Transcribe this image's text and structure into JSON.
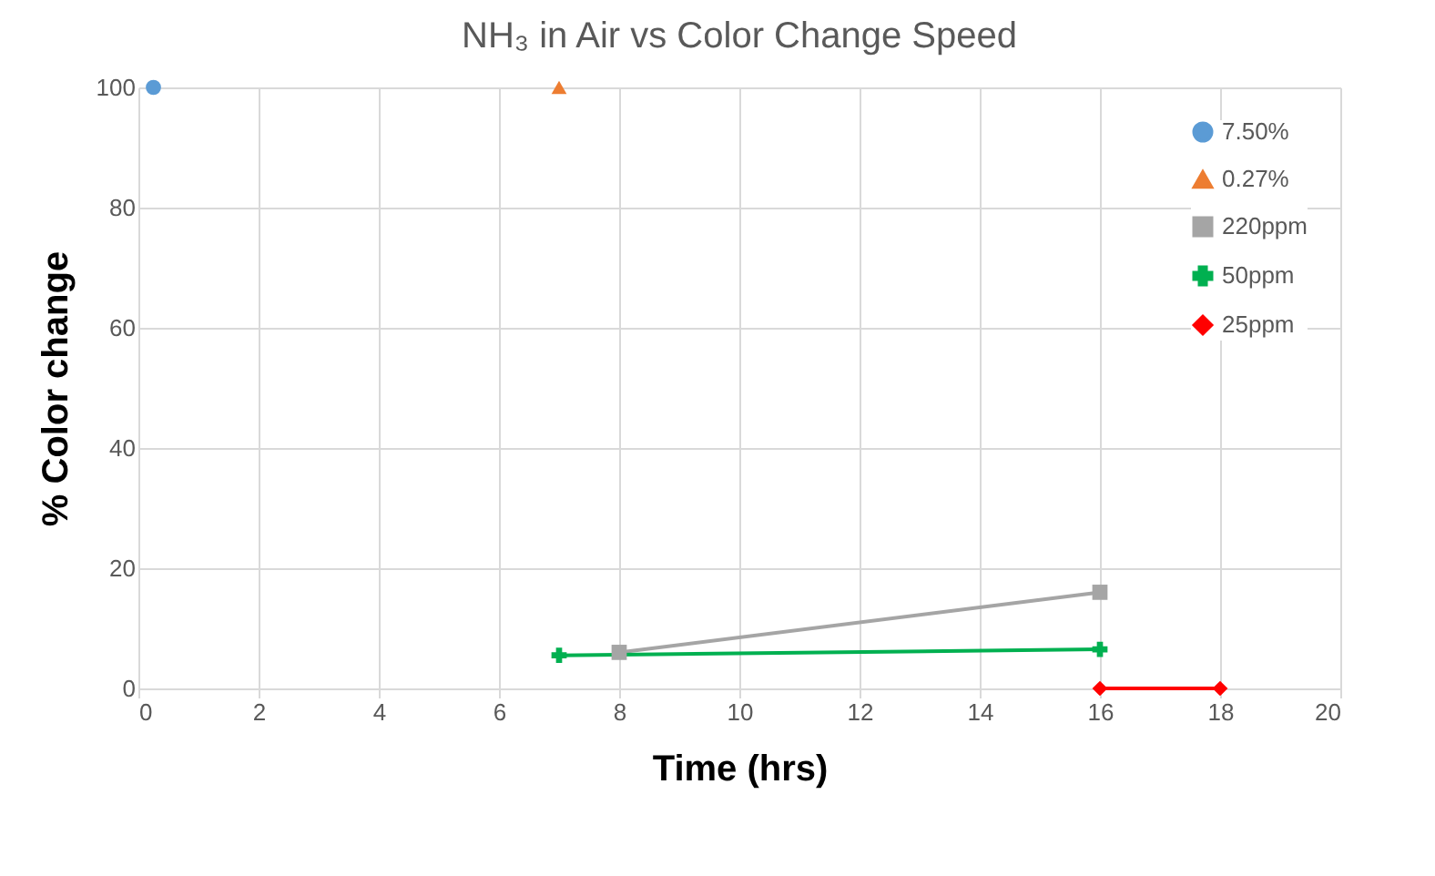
{
  "chart_data": {
    "type": "line",
    "title": "NH₃ in Air vs Color Change Speed",
    "xlabel": "Time (hrs)",
    "ylabel": "% Color change",
    "xlim": [
      0,
      20
    ],
    "xticks": [
      0,
      2,
      4,
      6,
      8,
      10,
      12,
      14,
      16,
      18,
      20
    ],
    "ylim": [
      0,
      100
    ],
    "yticks": [
      0,
      20,
      40,
      60,
      80,
      100
    ],
    "grid": true,
    "legend": "top right",
    "line_style": "solid",
    "series": [
      {
        "name": "7.50%",
        "color": "#5b9bd5",
        "marker": "circle",
        "x": [
          0.25
        ],
        "values": [
          100
        ]
      },
      {
        "name": "0.27%",
        "color": "#ed7d31",
        "marker": "triangle",
        "x": [
          7
        ],
        "values": [
          100
        ]
      },
      {
        "name": "220ppm",
        "color": "#a5a5a5",
        "marker": "square",
        "x": [
          8,
          16
        ],
        "values": [
          6,
          16
        ]
      },
      {
        "name": "50ppm",
        "color": "#00b050",
        "marker": "cross",
        "x": [
          7,
          16
        ],
        "values": [
          5.5,
          6.5
        ]
      },
      {
        "name": "25ppm",
        "color": "#ff0000",
        "marker": "diamond",
        "x": [
          16,
          18
        ],
        "values": [
          0,
          0
        ]
      }
    ]
  }
}
